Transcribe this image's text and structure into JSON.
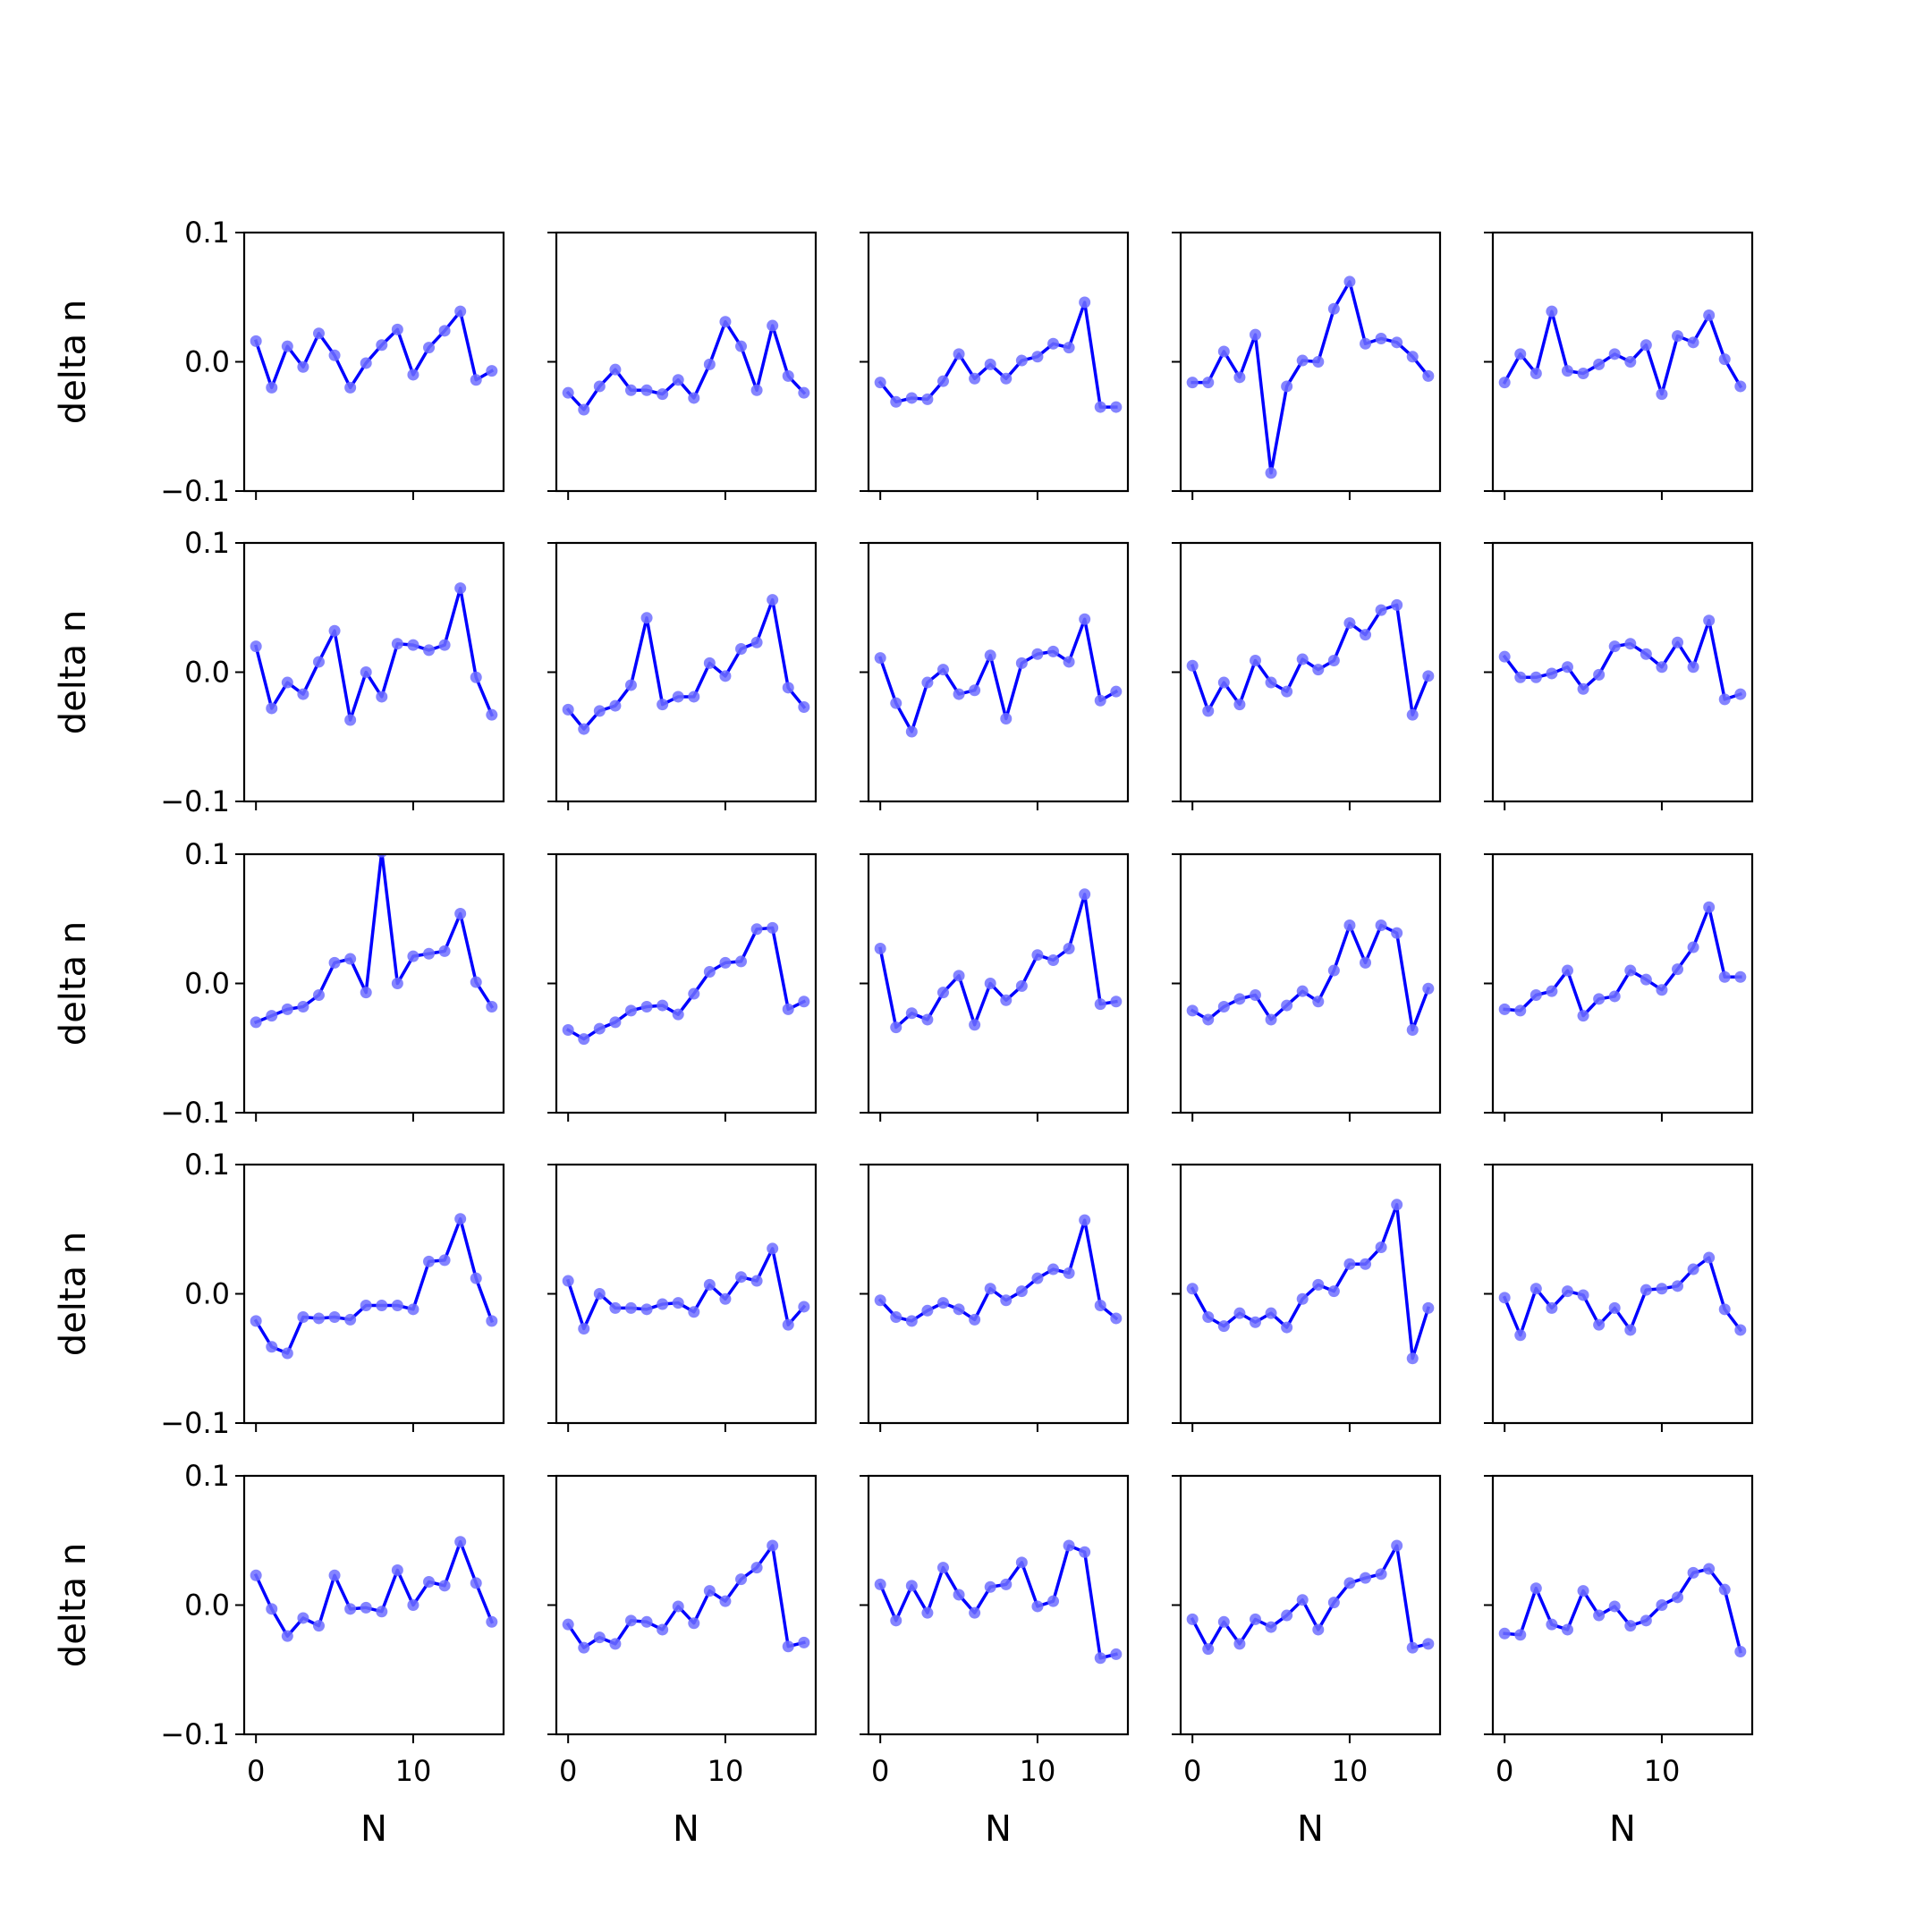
{
  "chart_data": {
    "type": "line",
    "layout": {
      "rows": 5,
      "cols": 5
    },
    "ylabel": "delta n",
    "xlabel": "N",
    "ylim": [
      -0.1,
      0.1
    ],
    "xlim": [
      -0.75,
      15.75
    ],
    "yticks": [
      -0.1,
      0.0,
      0.1
    ],
    "ytick_labels": [
      "−0.1",
      "0.0",
      "0.1"
    ],
    "xticks": [
      0,
      10
    ],
    "xtick_labels": [
      "0",
      "10"
    ],
    "x": [
      0,
      1,
      2,
      3,
      4,
      5,
      6,
      7,
      8,
      9,
      10,
      11,
      12,
      13,
      14,
      15
    ],
    "grid": false,
    "line_color": "#0000ff",
    "marker_color": "#6f6fff",
    "panels": [
      {
        "values": [
          0.016,
          -0.02,
          0.012,
          -0.004,
          0.022,
          0.005,
          -0.02,
          -0.001,
          0.013,
          0.025,
          -0.01,
          0.011,
          0.024,
          0.039,
          -0.014,
          -0.007
        ]
      },
      {
        "values": [
          -0.024,
          -0.037,
          -0.019,
          -0.006,
          -0.022,
          -0.022,
          -0.025,
          -0.014,
          -0.028,
          -0.002,
          0.031,
          0.012,
          -0.022,
          0.028,
          -0.011,
          -0.024
        ]
      },
      {
        "values": [
          -0.016,
          -0.031,
          -0.028,
          -0.029,
          -0.015,
          0.006,
          -0.013,
          -0.002,
          -0.013,
          0.001,
          0.004,
          0.014,
          0.011,
          0.046,
          -0.035,
          -0.035
        ]
      },
      {
        "values": [
          -0.016,
          -0.016,
          0.008,
          -0.012,
          0.021,
          -0.086,
          -0.019,
          0.001,
          0.0,
          0.041,
          0.062,
          0.014,
          0.018,
          0.015,
          0.004,
          -0.011
        ]
      },
      {
        "values": [
          -0.016,
          0.006,
          -0.009,
          0.039,
          -0.007,
          -0.009,
          -0.002,
          0.006,
          0.0,
          0.013,
          -0.025,
          0.02,
          0.015,
          0.036,
          0.002,
          -0.019
        ]
      },
      {
        "values": [
          0.02,
          -0.028,
          -0.008,
          -0.017,
          0.008,
          0.032,
          -0.037,
          0.0,
          -0.019,
          0.022,
          0.021,
          0.017,
          0.021,
          0.065,
          -0.004,
          -0.033
        ]
      },
      {
        "values": [
          -0.029,
          -0.044,
          -0.03,
          -0.026,
          -0.01,
          0.042,
          -0.025,
          -0.019,
          -0.019,
          0.007,
          -0.003,
          0.018,
          0.023,
          0.056,
          -0.012,
          -0.027
        ]
      },
      {
        "values": [
          0.011,
          -0.024,
          -0.046,
          -0.008,
          0.002,
          -0.017,
          -0.014,
          0.013,
          -0.036,
          0.007,
          0.014,
          0.016,
          0.008,
          0.041,
          -0.022,
          -0.015
        ]
      },
      {
        "values": [
          0.005,
          -0.03,
          -0.008,
          -0.025,
          0.009,
          -0.008,
          -0.015,
          0.01,
          0.002,
          0.009,
          0.038,
          0.029,
          0.048,
          0.052,
          -0.033,
          -0.003
        ]
      },
      {
        "values": [
          0.012,
          -0.004,
          -0.004,
          -0.001,
          0.004,
          -0.013,
          -0.002,
          0.02,
          0.022,
          0.014,
          0.004,
          0.023,
          0.004,
          0.04,
          -0.021,
          -0.017
        ]
      },
      {
        "values": [
          -0.03,
          -0.025,
          -0.02,
          -0.018,
          -0.009,
          0.016,
          0.019,
          -0.007,
          0.102,
          0.0,
          0.021,
          0.023,
          0.025,
          0.054,
          0.001,
          -0.018
        ]
      },
      {
        "values": [
          -0.036,
          -0.043,
          -0.035,
          -0.03,
          -0.021,
          -0.018,
          -0.017,
          -0.024,
          -0.008,
          0.009,
          0.016,
          0.017,
          0.042,
          0.043,
          -0.02,
          -0.014
        ]
      },
      {
        "values": [
          0.027,
          -0.034,
          -0.023,
          -0.028,
          -0.007,
          0.006,
          -0.032,
          0.0,
          -0.013,
          -0.002,
          0.022,
          0.018,
          0.027,
          0.069,
          -0.016,
          -0.014
        ]
      },
      {
        "values": [
          -0.021,
          -0.028,
          -0.018,
          -0.012,
          -0.009,
          -0.028,
          -0.017,
          -0.006,
          -0.014,
          0.01,
          0.045,
          0.016,
          0.045,
          0.039,
          -0.036,
          -0.004
        ]
      },
      {
        "values": [
          -0.02,
          -0.021,
          -0.009,
          -0.006,
          0.01,
          -0.025,
          -0.012,
          -0.01,
          0.01,
          0.003,
          -0.005,
          0.011,
          0.028,
          0.059,
          0.005,
          0.005
        ]
      },
      {
        "values": [
          -0.021,
          -0.041,
          -0.046,
          -0.018,
          -0.019,
          -0.018,
          -0.02,
          -0.009,
          -0.009,
          -0.009,
          -0.012,
          0.025,
          0.026,
          0.058,
          0.012,
          -0.021
        ]
      },
      {
        "values": [
          0.01,
          -0.027,
          0.0,
          -0.011,
          -0.011,
          -0.012,
          -0.008,
          -0.007,
          -0.014,
          0.007,
          -0.004,
          0.013,
          0.01,
          0.035,
          -0.024,
          -0.01
        ]
      },
      {
        "values": [
          -0.005,
          -0.018,
          -0.021,
          -0.013,
          -0.007,
          -0.012,
          -0.02,
          0.004,
          -0.005,
          0.002,
          0.012,
          0.019,
          0.016,
          0.057,
          -0.009,
          -0.019
        ]
      },
      {
        "values": [
          0.004,
          -0.018,
          -0.025,
          -0.015,
          -0.022,
          -0.015,
          -0.026,
          -0.004,
          0.007,
          0.002,
          0.023,
          0.023,
          0.036,
          0.069,
          -0.05,
          -0.011
        ]
      },
      {
        "values": [
          -0.003,
          -0.032,
          0.004,
          -0.011,
          0.002,
          -0.001,
          -0.024,
          -0.011,
          -0.028,
          0.003,
          0.004,
          0.006,
          0.019,
          0.028,
          -0.012,
          -0.028
        ]
      },
      {
        "values": [
          0.023,
          -0.003,
          -0.024,
          -0.01,
          -0.016,
          0.023,
          -0.003,
          -0.002,
          -0.005,
          0.027,
          0.0,
          0.018,
          0.015,
          0.049,
          0.017,
          -0.013
        ]
      },
      {
        "values": [
          -0.015,
          -0.033,
          -0.025,
          -0.03,
          -0.012,
          -0.013,
          -0.019,
          -0.001,
          -0.014,
          0.011,
          0.003,
          0.02,
          0.029,
          0.046,
          -0.032,
          -0.029
        ]
      },
      {
        "values": [
          0.016,
          -0.012,
          0.015,
          -0.006,
          0.029,
          0.008,
          -0.006,
          0.014,
          0.016,
          0.033,
          -0.001,
          0.003,
          0.046,
          0.041,
          -0.041,
          -0.038
        ]
      },
      {
        "values": [
          -0.011,
          -0.034,
          -0.013,
          -0.03,
          -0.011,
          -0.017,
          -0.008,
          0.004,
          -0.019,
          0.002,
          0.017,
          0.021,
          0.024,
          0.046,
          -0.033,
          -0.03
        ]
      },
      {
        "values": [
          -0.022,
          -0.023,
          0.013,
          -0.015,
          -0.019,
          0.011,
          -0.008,
          -0.001,
          -0.016,
          -0.012,
          0.0,
          0.006,
          0.025,
          0.028,
          0.012,
          -0.036
        ]
      }
    ]
  }
}
